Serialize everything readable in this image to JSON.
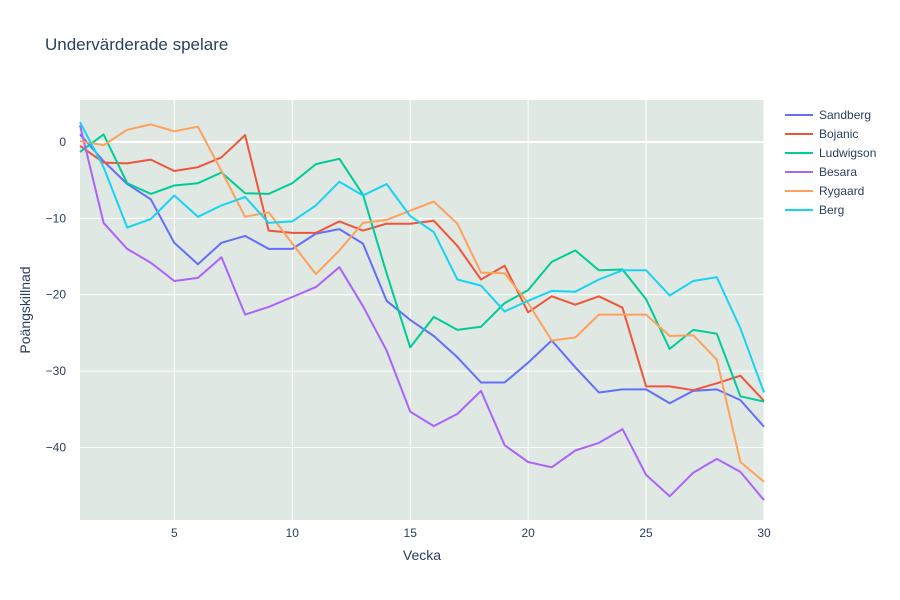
{
  "chart_data": {
    "type": "line",
    "title": "Undervärderade spelare",
    "xlabel": "Vecka",
    "ylabel": "Poängskillnad",
    "xlim": [
      1,
      30
    ],
    "ylim": [
      -49.5,
      5.5
    ],
    "xticks": [
      5,
      10,
      15,
      20,
      25,
      30
    ],
    "yticks": [
      0,
      -10,
      -20,
      -30,
      -40
    ],
    "grid": true,
    "legend_position": "top-right",
    "background": "#dfe8e3",
    "x": [
      1,
      2,
      3,
      4,
      5,
      6,
      7,
      8,
      9,
      10,
      11,
      12,
      13,
      14,
      15,
      16,
      17,
      18,
      19,
      20,
      21,
      22,
      23,
      24,
      25,
      26,
      27,
      28,
      29,
      30
    ],
    "series": [
      {
        "name": "Sandberg",
        "color": "#636efa",
        "values": [
          1.0,
          -2.5,
          -5.5,
          -7.5,
          -13.2,
          -16.0,
          -13.2,
          -12.3,
          -14.0,
          -14.0,
          -12.0,
          -11.4,
          -13.3,
          -20.8,
          -23.3,
          -25.4,
          -28.2,
          -31.5,
          -31.5,
          -28.9,
          -26.0,
          -29.5,
          -32.8,
          -32.4,
          -32.4,
          -34.2,
          -32.6,
          -32.4,
          -33.8,
          -37.3
        ]
      },
      {
        "name": "Bojanic",
        "color": "#ef553b",
        "values": [
          -0.5,
          -2.7,
          -2.8,
          -2.3,
          -3.8,
          -3.3,
          -2.0,
          0.9,
          -11.6,
          -11.9,
          -11.9,
          -10.4,
          -11.6,
          -10.7,
          -10.7,
          -10.3,
          -13.6,
          -18.0,
          -16.2,
          -22.3,
          -20.2,
          -21.3,
          -20.2,
          -21.7,
          -32.0,
          -32.0,
          -32.5,
          -31.6,
          -30.6,
          -33.9
        ]
      },
      {
        "name": "Ludwigson",
        "color": "#00cc96",
        "values": [
          -1.3,
          1.0,
          -5.4,
          -6.8,
          -5.7,
          -5.4,
          -4.0,
          -6.7,
          -6.8,
          -5.4,
          -2.9,
          -2.2,
          -6.9,
          -17.2,
          -26.9,
          -22.9,
          -24.6,
          -24.2,
          -21.1,
          -19.4,
          -15.7,
          -14.2,
          -16.8,
          -16.7,
          -20.6,
          -27.1,
          -24.6,
          -25.1,
          -33.3,
          -34.0
        ]
      },
      {
        "name": "Besara",
        "color": "#ab63fa",
        "values": [
          2.2,
          -10.6,
          -14.0,
          -15.8,
          -18.2,
          -17.8,
          -15.1,
          -22.6,
          -21.6,
          -20.3,
          -19.0,
          -16.4,
          -21.5,
          -27.3,
          -35.3,
          -37.2,
          -35.6,
          -32.6,
          -39.7,
          -41.9,
          -42.6,
          -40.4,
          -39.4,
          -37.6,
          -43.6,
          -46.4,
          -43.3,
          -41.5,
          -43.2,
          -46.9
        ]
      },
      {
        "name": "Rygaard",
        "color": "#ffa15a",
        "values": [
          0.1,
          -0.4,
          1.6,
          2.3,
          1.4,
          2.0,
          -3.8,
          -9.8,
          -9.2,
          -13.3,
          -17.3,
          -14.2,
          -10.6,
          -10.2,
          -9.0,
          -7.8,
          -10.7,
          -17.1,
          -17.2,
          -21.1,
          -26.0,
          -25.6,
          -22.6,
          -22.6,
          -22.6,
          -25.4,
          -25.3,
          -28.5,
          -41.9,
          -44.5
        ]
      },
      {
        "name": "Berg",
        "color": "#19d3f3",
        "values": [
          2.6,
          -3.3,
          -11.2,
          -10.1,
          -7.0,
          -9.8,
          -8.3,
          -7.2,
          -10.6,
          -10.4,
          -8.3,
          -5.2,
          -7.0,
          -5.5,
          -9.7,
          -11.8,
          -18.0,
          -18.8,
          -22.2,
          -20.8,
          -19.5,
          -19.6,
          -18.0,
          -16.8,
          -16.8,
          -20.1,
          -18.2,
          -17.7,
          -24.4,
          -32.8
        ]
      }
    ]
  }
}
